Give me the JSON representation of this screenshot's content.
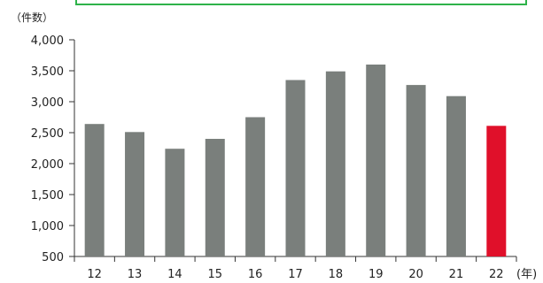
{
  "chart_data": {
    "type": "bar",
    "y_unit": "（件数）",
    "x_unit": "(年)",
    "categories": [
      "12",
      "13",
      "14",
      "15",
      "16",
      "17",
      "18",
      "19",
      "20",
      "21",
      "22"
    ],
    "values": [
      2640,
      2510,
      2240,
      2400,
      2750,
      3350,
      3490,
      3600,
      3270,
      3090,
      2610
    ],
    "ylim": [
      500,
      4000
    ],
    "yticks": [
      500,
      1000,
      1500,
      2000,
      2500,
      3000,
      3500,
      4000
    ],
    "ytick_labels": [
      "500",
      "1,000",
      "1,500",
      "2,000",
      "2,500",
      "3,000",
      "3,500",
      "4,000"
    ],
    "grid": false,
    "legend": "none",
    "bar_color": "#7a7f7c",
    "highlight_color": "#e0102a",
    "highlight_index": 10,
    "frame_color": "#2eb34a"
  }
}
